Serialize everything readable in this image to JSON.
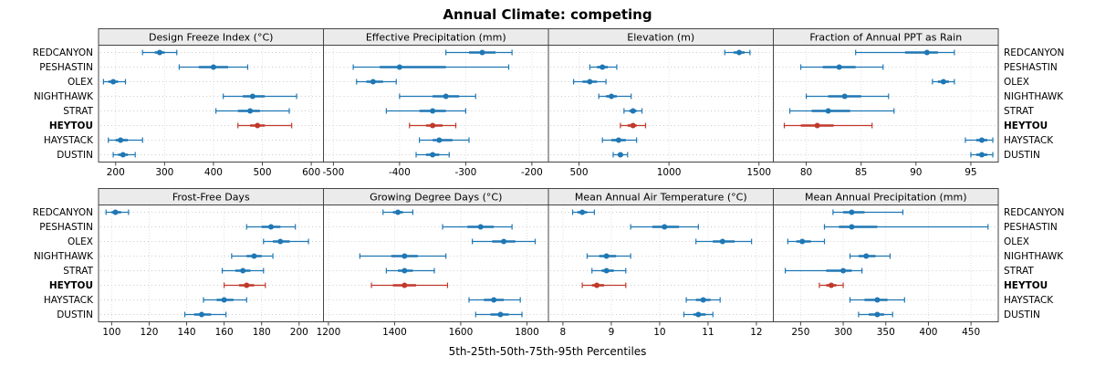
{
  "title": "Annual Climate: competing",
  "footer": "5th-25th-50th-75th-95th Percentiles",
  "sites": [
    "REDCANYON",
    "PESHASTIN",
    "OLEX",
    "NIGHTHAWK",
    "STRAT",
    "HEYTOU",
    "HAYSTACK",
    "DUSTIN"
  ],
  "highlight_site": "HEYTOU",
  "colors": {
    "normal": "#1f77b4",
    "highlight": "#c0392b",
    "strip_bg": "#ebebeb",
    "panel_border": "#444444",
    "grid": "#cccccc"
  },
  "percentile_labels": [
    "5th",
    "25th",
    "50th",
    "75th",
    "95th"
  ],
  "chart_data": [
    {
      "type": "dot-whisker",
      "title": "Design Freeze Index (°C)",
      "xlim": [
        165,
        625
      ],
      "ticks": [
        200,
        300,
        400,
        500,
        600
      ],
      "series": [
        {
          "site": "REDCANYON",
          "values": [
            255,
            280,
            290,
            300,
            325
          ]
        },
        {
          "site": "PESHASTIN",
          "values": [
            330,
            370,
            400,
            430,
            470
          ]
        },
        {
          "site": "OLEX",
          "values": [
            175,
            185,
            195,
            205,
            220
          ]
        },
        {
          "site": "NIGHTHAWK",
          "values": [
            420,
            460,
            480,
            505,
            570
          ]
        },
        {
          "site": "STRAT",
          "values": [
            405,
            450,
            475,
            495,
            555
          ]
        },
        {
          "site": "HEYTOU",
          "values": [
            450,
            475,
            490,
            505,
            560
          ]
        },
        {
          "site": "HAYSTACK",
          "values": [
            185,
            200,
            210,
            225,
            255
          ]
        },
        {
          "site": "DUSTIN",
          "values": [
            195,
            205,
            215,
            225,
            240
          ]
        }
      ]
    },
    {
      "type": "dot-whisker",
      "title": "Effective Precipitation (mm)",
      "xlim": [
        -515,
        -175
      ],
      "ticks": [
        -500,
        -400,
        -300,
        -200
      ],
      "series": [
        {
          "site": "REDCANYON",
          "values": [
            -330,
            -295,
            -275,
            -255,
            -230
          ]
        },
        {
          "site": "PESHASTIN",
          "values": [
            -470,
            -430,
            -400,
            -330,
            -235
          ]
        },
        {
          "site": "OLEX",
          "values": [
            -465,
            -450,
            -440,
            -425,
            -405
          ]
        },
        {
          "site": "NIGHTHAWK",
          "values": [
            -400,
            -350,
            -330,
            -310,
            -285
          ]
        },
        {
          "site": "STRAT",
          "values": [
            -420,
            -370,
            -350,
            -330,
            -300
          ]
        },
        {
          "site": "HEYTOU",
          "values": [
            -385,
            -360,
            -350,
            -335,
            -315
          ]
        },
        {
          "site": "HAYSTACK",
          "values": [
            -370,
            -350,
            -340,
            -320,
            -295
          ]
        },
        {
          "site": "DUSTIN",
          "values": [
            -375,
            -360,
            -350,
            -340,
            -325
          ]
        }
      ]
    },
    {
      "type": "dot-whisker",
      "title": "Elevation (m)",
      "xlim": [
        330,
        1580
      ],
      "ticks": [
        500,
        1000,
        1500
      ],
      "series": [
        {
          "site": "REDCANYON",
          "values": [
            1310,
            1360,
            1390,
            1420,
            1450
          ]
        },
        {
          "site": "PESHASTIN",
          "values": [
            560,
            600,
            630,
            660,
            710
          ]
        },
        {
          "site": "OLEX",
          "values": [
            470,
            520,
            560,
            600,
            650
          ]
        },
        {
          "site": "NIGHTHAWK",
          "values": [
            610,
            650,
            680,
            710,
            790
          ]
        },
        {
          "site": "STRAT",
          "values": [
            750,
            780,
            800,
            820,
            850
          ]
        },
        {
          "site": "HEYTOU",
          "values": [
            730,
            770,
            800,
            820,
            870
          ]
        },
        {
          "site": "HAYSTACK",
          "values": [
            630,
            680,
            720,
            760,
            820
          ]
        },
        {
          "site": "DUSTIN",
          "values": [
            690,
            715,
            730,
            745,
            770
          ]
        }
      ]
    },
    {
      "type": "dot-whisker",
      "title": "Fraction of Annual PPT as Rain",
      "xlim": [
        77,
        97.5
      ],
      "ticks": [
        80,
        85,
        90,
        95
      ],
      "series": [
        {
          "site": "REDCANYON",
          "values": [
            84.5,
            89,
            91,
            92,
            93.5
          ]
        },
        {
          "site": "PESHASTIN",
          "values": [
            79.5,
            81.5,
            83,
            84.5,
            87
          ]
        },
        {
          "site": "OLEX",
          "values": [
            91.5,
            92,
            92.5,
            93,
            93.5
          ]
        },
        {
          "site": "NIGHTHAWK",
          "values": [
            80,
            82,
            83.5,
            85,
            87.5
          ]
        },
        {
          "site": "STRAT",
          "values": [
            78.5,
            80.5,
            82,
            84,
            88
          ]
        },
        {
          "site": "HEYTOU",
          "values": [
            78,
            79.5,
            81,
            82.5,
            86
          ]
        },
        {
          "site": "HAYSTACK",
          "values": [
            94.5,
            95.5,
            96,
            96.5,
            97
          ]
        },
        {
          "site": "DUSTIN",
          "values": [
            95,
            95.5,
            96,
            96.5,
            97
          ]
        }
      ]
    },
    {
      "type": "dot-whisker",
      "title": "Frost-Free Days",
      "xlim": [
        93,
        213
      ],
      "ticks": [
        100,
        120,
        140,
        160,
        180,
        200
      ],
      "series": [
        {
          "site": "REDCANYON",
          "values": [
            97,
            100,
            102,
            105,
            109
          ]
        },
        {
          "site": "PESHASTIN",
          "values": [
            172,
            180,
            185,
            190,
            198
          ]
        },
        {
          "site": "OLEX",
          "values": [
            181,
            186,
            190,
            195,
            205
          ]
        },
        {
          "site": "NIGHTHAWK",
          "values": [
            164,
            172,
            176,
            180,
            186
          ]
        },
        {
          "site": "STRAT",
          "values": [
            159,
            166,
            170,
            174,
            181
          ]
        },
        {
          "site": "HEYTOU",
          "values": [
            160,
            168,
            172,
            176,
            182
          ]
        },
        {
          "site": "HAYSTACK",
          "values": [
            149,
            156,
            160,
            165,
            172
          ]
        },
        {
          "site": "DUSTIN",
          "values": [
            139,
            144,
            148,
            153,
            161
          ]
        }
      ]
    },
    {
      "type": "dot-whisker",
      "title": "Growing Degree Days (°C)",
      "xlim": [
        1185,
        1865
      ],
      "ticks": [
        1200,
        1400,
        1600,
        1800
      ],
      "series": [
        {
          "site": "REDCANYON",
          "values": [
            1365,
            1395,
            1410,
            1425,
            1455
          ]
        },
        {
          "site": "PESHASTIN",
          "values": [
            1545,
            1620,
            1660,
            1700,
            1755
          ]
        },
        {
          "site": "OLEX",
          "values": [
            1635,
            1695,
            1730,
            1765,
            1825
          ]
        },
        {
          "site": "NIGHTHAWK",
          "values": [
            1295,
            1390,
            1430,
            1470,
            1555
          ]
        },
        {
          "site": "STRAT",
          "values": [
            1375,
            1410,
            1430,
            1455,
            1520
          ]
        },
        {
          "site": "HEYTOU",
          "values": [
            1330,
            1395,
            1430,
            1465,
            1560
          ]
        },
        {
          "site": "HAYSTACK",
          "values": [
            1625,
            1670,
            1700,
            1730,
            1780
          ]
        },
        {
          "site": "DUSTIN",
          "values": [
            1645,
            1690,
            1720,
            1745,
            1785
          ]
        }
      ]
    },
    {
      "type": "dot-whisker",
      "title": "Mean Annual Air Temperature (°C)",
      "xlim": [
        7.7,
        12.35
      ],
      "ticks": [
        8,
        9,
        10,
        11,
        12
      ],
      "series": [
        {
          "site": "REDCANYON",
          "values": [
            8.2,
            8.3,
            8.4,
            8.5,
            8.65
          ]
        },
        {
          "site": "PESHASTIN",
          "values": [
            9.4,
            9.85,
            10.1,
            10.4,
            10.8
          ]
        },
        {
          "site": "OLEX",
          "values": [
            10.75,
            11.1,
            11.3,
            11.55,
            11.9
          ]
        },
        {
          "site": "NIGHTHAWK",
          "values": [
            8.5,
            8.75,
            8.9,
            9.1,
            9.4
          ]
        },
        {
          "site": "STRAT",
          "values": [
            8.6,
            8.8,
            8.9,
            9.05,
            9.3
          ]
        },
        {
          "site": "HEYTOU",
          "values": [
            8.4,
            8.6,
            8.7,
            8.85,
            9.3
          ]
        },
        {
          "site": "HAYSTACK",
          "values": [
            10.55,
            10.75,
            10.9,
            11.05,
            11.25
          ]
        },
        {
          "site": "DUSTIN",
          "values": [
            10.5,
            10.7,
            10.8,
            10.95,
            11.1
          ]
        }
      ]
    },
    {
      "type": "dot-whisker",
      "title": "Mean Annual Precipitation (mm)",
      "xlim": [
        218,
        482
      ],
      "ticks": [
        250,
        300,
        350,
        400,
        450
      ],
      "series": [
        {
          "site": "REDCANYON",
          "values": [
            288,
            300,
            310,
            325,
            370
          ]
        },
        {
          "site": "PESHASTIN",
          "values": [
            278,
            295,
            310,
            340,
            470
          ]
        },
        {
          "site": "OLEX",
          "values": [
            235,
            245,
            252,
            262,
            278
          ]
        },
        {
          "site": "NIGHTHAWK",
          "values": [
            308,
            318,
            327,
            338,
            355
          ]
        },
        {
          "site": "STRAT",
          "values": [
            232,
            280,
            300,
            310,
            322
          ]
        },
        {
          "site": "HEYTOU",
          "values": [
            272,
            280,
            286,
            292,
            300
          ]
        },
        {
          "site": "HAYSTACK",
          "values": [
            308,
            325,
            340,
            352,
            372
          ]
        },
        {
          "site": "DUSTIN",
          "values": [
            318,
            330,
            340,
            348,
            358
          ]
        }
      ]
    }
  ]
}
